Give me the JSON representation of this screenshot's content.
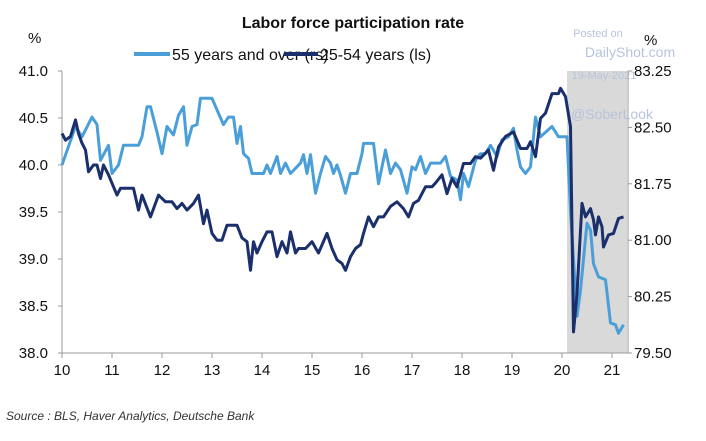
{
  "chart_data": {
    "type": "line",
    "title": "Labor force participation rate",
    "left_unit": "%",
    "right_unit": "%",
    "left_axis": {
      "range": [
        38.0,
        41.0
      ],
      "ticks": [
        "41.0",
        "40.5",
        "40.0",
        "39.5",
        "39.0",
        "38.5",
        "38.0"
      ]
    },
    "right_axis": {
      "range": [
        79.5,
        83.25
      ],
      "ticks": [
        "83.25",
        "82.50",
        "81.75",
        "81.00",
        "80.25",
        "79.50"
      ]
    },
    "x_axis": {
      "range": [
        10,
        21.3
      ],
      "ticks": [
        "10",
        "11",
        "12",
        "13",
        "14",
        "15",
        "16",
        "17",
        "18",
        "19",
        "20",
        "21"
      ]
    },
    "shaded_period": [
      20.1,
      21.3
    ],
    "legend_placement": "top",
    "grid": false,
    "series": [
      {
        "name": "55 years and over (rs)",
        "color": "#4a9fd8",
        "axis": "left",
        "points": [
          [
            10.0,
            40.0
          ],
          [
            10.27,
            40.41
          ],
          [
            10.4,
            40.3
          ],
          [
            10.6,
            40.51
          ],
          [
            10.7,
            40.43
          ],
          [
            10.77,
            40.05
          ],
          [
            10.93,
            40.21
          ],
          [
            11.0,
            39.91
          ],
          [
            11.13,
            40.0
          ],
          [
            11.23,
            40.21
          ],
          [
            11.53,
            40.21
          ],
          [
            11.6,
            40.3
          ],
          [
            11.7,
            40.62
          ],
          [
            11.77,
            40.62
          ],
          [
            11.9,
            40.35
          ],
          [
            12.0,
            40.12
          ],
          [
            12.1,
            40.41
          ],
          [
            12.23,
            40.32
          ],
          [
            12.33,
            40.53
          ],
          [
            12.43,
            40.62
          ],
          [
            12.5,
            40.21
          ],
          [
            12.6,
            40.41
          ],
          [
            12.7,
            40.43
          ],
          [
            12.77,
            40.71
          ],
          [
            13.0,
            40.71
          ],
          [
            13.13,
            40.55
          ],
          [
            13.23,
            40.43
          ],
          [
            13.33,
            40.51
          ],
          [
            13.43,
            40.51
          ],
          [
            13.5,
            40.23
          ],
          [
            13.57,
            40.41
          ],
          [
            13.63,
            40.12
          ],
          [
            13.73,
            40.07
          ],
          [
            13.8,
            39.91
          ],
          [
            14.03,
            39.91
          ],
          [
            14.1,
            40.0
          ],
          [
            14.17,
            39.91
          ],
          [
            14.3,
            40.09
          ],
          [
            14.37,
            39.91
          ],
          [
            14.47,
            40.02
          ],
          [
            14.57,
            39.91
          ],
          [
            14.77,
            40.02
          ],
          [
            14.83,
            40.11
          ],
          [
            14.9,
            39.91
          ],
          [
            14.97,
            40.11
          ],
          [
            15.07,
            39.7
          ],
          [
            15.17,
            39.91
          ],
          [
            15.27,
            40.09
          ],
          [
            15.37,
            40.02
          ],
          [
            15.43,
            39.91
          ],
          [
            15.5,
            40.0
          ],
          [
            15.57,
            39.89
          ],
          [
            15.67,
            39.7
          ],
          [
            15.77,
            39.91
          ],
          [
            15.9,
            39.91
          ],
          [
            16.0,
            40.12
          ],
          [
            16.03,
            40.23
          ],
          [
            16.23,
            40.23
          ],
          [
            16.33,
            39.8
          ],
          [
            16.47,
            40.16
          ],
          [
            16.57,
            39.91
          ],
          [
            16.67,
            40.02
          ],
          [
            16.77,
            39.95
          ],
          [
            16.9,
            39.7
          ],
          [
            17.0,
            39.98
          ],
          [
            17.07,
            39.95
          ],
          [
            17.17,
            40.09
          ],
          [
            17.27,
            39.91
          ],
          [
            17.37,
            40.02
          ],
          [
            17.57,
            40.02
          ],
          [
            17.67,
            40.09
          ],
          [
            17.77,
            39.88
          ],
          [
            17.9,
            39.84
          ],
          [
            17.97,
            39.63
          ],
          [
            18.03,
            39.91
          ],
          [
            18.13,
            39.77
          ],
          [
            18.27,
            40.05
          ],
          [
            18.37,
            40.12
          ],
          [
            18.47,
            40.12
          ],
          [
            18.57,
            40.21
          ],
          [
            18.7,
            40.09
          ],
          [
            18.8,
            40.27
          ],
          [
            18.93,
            40.3
          ],
          [
            19.03,
            40.39
          ],
          [
            19.1,
            40.16
          ],
          [
            19.17,
            39.98
          ],
          [
            19.27,
            39.91
          ],
          [
            19.37,
            39.98
          ],
          [
            19.47,
            40.51
          ],
          [
            19.57,
            40.3
          ],
          [
            19.8,
            40.41
          ],
          [
            19.93,
            40.3
          ],
          [
            20.1,
            40.3
          ],
          [
            20.17,
            39.52
          ],
          [
            20.3,
            38.39
          ],
          [
            20.37,
            38.67
          ],
          [
            20.5,
            39.38
          ],
          [
            20.57,
            39.31
          ],
          [
            20.63,
            38.95
          ],
          [
            20.73,
            38.81
          ],
          [
            20.87,
            38.78
          ],
          [
            20.97,
            38.32
          ],
          [
            21.07,
            38.3
          ],
          [
            21.13,
            38.21
          ],
          [
            21.23,
            38.3
          ]
        ]
      },
      {
        "name": "25-54 years (ls)",
        "color": "#1a2f6b",
        "axis": "right",
        "points": [
          [
            10.0,
            82.42
          ],
          [
            10.07,
            82.33
          ],
          [
            10.17,
            82.38
          ],
          [
            10.27,
            82.6
          ],
          [
            10.33,
            82.42
          ],
          [
            10.4,
            82.29
          ],
          [
            10.47,
            82.2
          ],
          [
            10.53,
            81.91
          ],
          [
            10.63,
            82.0
          ],
          [
            10.7,
            82.0
          ],
          [
            10.77,
            81.82
          ],
          [
            10.83,
            82.0
          ],
          [
            10.93,
            81.87
          ],
          [
            11.03,
            81.71
          ],
          [
            11.1,
            81.6
          ],
          [
            11.17,
            81.69
          ],
          [
            11.43,
            81.69
          ],
          [
            11.53,
            81.4
          ],
          [
            11.6,
            81.6
          ],
          [
            11.77,
            81.31
          ],
          [
            11.93,
            81.6
          ],
          [
            12.07,
            81.51
          ],
          [
            12.2,
            81.51
          ],
          [
            12.3,
            81.42
          ],
          [
            12.4,
            81.49
          ],
          [
            12.5,
            81.4
          ],
          [
            12.63,
            81.49
          ],
          [
            12.73,
            81.6
          ],
          [
            12.83,
            81.22
          ],
          [
            12.9,
            81.4
          ],
          [
            13.0,
            81.09
          ],
          [
            13.1,
            81.0
          ],
          [
            13.2,
            81.0
          ],
          [
            13.3,
            81.2
          ],
          [
            13.5,
            81.2
          ],
          [
            13.6,
            81.03
          ],
          [
            13.7,
            80.98
          ],
          [
            13.77,
            80.6
          ],
          [
            13.83,
            80.98
          ],
          [
            13.9,
            80.83
          ],
          [
            14.0,
            80.98
          ],
          [
            14.1,
            81.11
          ],
          [
            14.2,
            81.11
          ],
          [
            14.3,
            80.78
          ],
          [
            14.4,
            80.98
          ],
          [
            14.5,
            80.83
          ],
          [
            14.57,
            81.11
          ],
          [
            14.67,
            80.83
          ],
          [
            14.73,
            80.89
          ],
          [
            14.87,
            80.89
          ],
          [
            15.0,
            80.98
          ],
          [
            15.13,
            80.83
          ],
          [
            15.3,
            81.09
          ],
          [
            15.4,
            80.89
          ],
          [
            15.5,
            80.74
          ],
          [
            15.6,
            80.69
          ],
          [
            15.67,
            80.6
          ],
          [
            15.77,
            80.78
          ],
          [
            15.87,
            80.89
          ],
          [
            15.97,
            80.94
          ],
          [
            16.03,
            81.09
          ],
          [
            16.13,
            81.31
          ],
          [
            16.23,
            81.18
          ],
          [
            16.33,
            81.31
          ],
          [
            16.43,
            81.31
          ],
          [
            16.57,
            81.45
          ],
          [
            16.7,
            81.51
          ],
          [
            16.83,
            81.42
          ],
          [
            16.93,
            81.31
          ],
          [
            17.03,
            81.49
          ],
          [
            17.13,
            81.53
          ],
          [
            17.27,
            81.71
          ],
          [
            17.4,
            81.71
          ],
          [
            17.47,
            81.76
          ],
          [
            17.6,
            81.87
          ],
          [
            17.7,
            81.62
          ],
          [
            17.8,
            81.82
          ],
          [
            17.9,
            81.71
          ],
          [
            18.03,
            82.02
          ],
          [
            18.17,
            82.02
          ],
          [
            18.27,
            82.11
          ],
          [
            18.37,
            82.09
          ],
          [
            18.53,
            82.2
          ],
          [
            18.63,
            81.93
          ],
          [
            18.73,
            82.24
          ],
          [
            18.87,
            82.38
          ],
          [
            19.03,
            82.44
          ],
          [
            19.17,
            82.22
          ],
          [
            19.3,
            82.22
          ],
          [
            19.37,
            82.31
          ],
          [
            19.47,
            82.11
          ],
          [
            19.57,
            82.62
          ],
          [
            19.67,
            82.69
          ],
          [
            19.8,
            82.95
          ],
          [
            19.93,
            82.95
          ],
          [
            19.97,
            83.02
          ],
          [
            20.07,
            82.91
          ],
          [
            20.17,
            82.51
          ],
          [
            20.23,
            79.78
          ],
          [
            20.3,
            80.29
          ],
          [
            20.4,
            81.49
          ],
          [
            20.47,
            81.31
          ],
          [
            20.57,
            81.42
          ],
          [
            20.63,
            81.27
          ],
          [
            20.67,
            81.07
          ],
          [
            20.73,
            81.31
          ],
          [
            20.8,
            81.18
          ],
          [
            20.83,
            80.91
          ],
          [
            20.93,
            81.07
          ],
          [
            21.03,
            81.09
          ],
          [
            21.13,
            81.29
          ],
          [
            21.23,
            81.31
          ]
        ]
      }
    ],
    "source": "Source : BLS, Haver Analytics, Deutsche Bank"
  },
  "watermark": {
    "posted_on": "Posted on",
    "site": "DailyShot.com",
    "date": "19-May-2021",
    "handle": "@SoberLook"
  }
}
